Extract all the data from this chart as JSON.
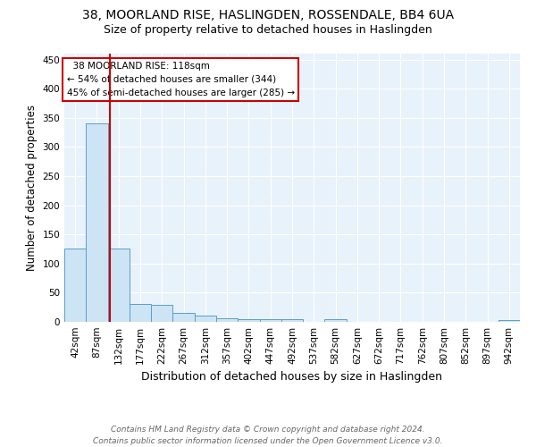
{
  "title": "38, MOORLAND RISE, HASLINGDEN, ROSSENDALE, BB4 6UA",
  "subtitle": "Size of property relative to detached houses in Haslingden",
  "xlabel": "Distribution of detached houses by size in Haslingden",
  "ylabel": "Number of detached properties",
  "bar_color": "#cde4f5",
  "bar_edge_color": "#5b9ec9",
  "background_color": "#e8f2fb",
  "grid_color": "#ffffff",
  "bins": [
    "42sqm",
    "87sqm",
    "132sqm",
    "177sqm",
    "222sqm",
    "267sqm",
    "312sqm",
    "357sqm",
    "402sqm",
    "447sqm",
    "492sqm",
    "537sqm",
    "582sqm",
    "627sqm",
    "672sqm",
    "717sqm",
    "762sqm",
    "807sqm",
    "852sqm",
    "897sqm",
    "942sqm"
  ],
  "values": [
    125,
    340,
    125,
    30,
    29,
    15,
    10,
    6,
    4,
    4,
    4,
    0,
    5,
    0,
    0,
    0,
    0,
    0,
    0,
    0,
    3
  ],
  "property_line_x": 1.62,
  "property_line_color": "#cc0000",
  "annotation_text": "  38 MOORLAND RISE: 118sqm\n← 54% of detached houses are smaller (344)\n45% of semi-detached houses are larger (285) →",
  "annotation_box_color": "#ffffff",
  "annotation_box_edge_color": "#cc0000",
  "yticks": [
    0,
    50,
    100,
    150,
    200,
    250,
    300,
    350,
    400,
    450
  ],
  "ylim": [
    0,
    460
  ],
  "footer": "Contains HM Land Registry data © Crown copyright and database right 2024.\nContains public sector information licensed under the Open Government Licence v3.0.",
  "title_fontsize": 10,
  "subtitle_fontsize": 9,
  "xlabel_fontsize": 9,
  "ylabel_fontsize": 8.5,
  "tick_fontsize": 7.5,
  "annotation_fontsize": 7.5,
  "footer_fontsize": 6.5
}
